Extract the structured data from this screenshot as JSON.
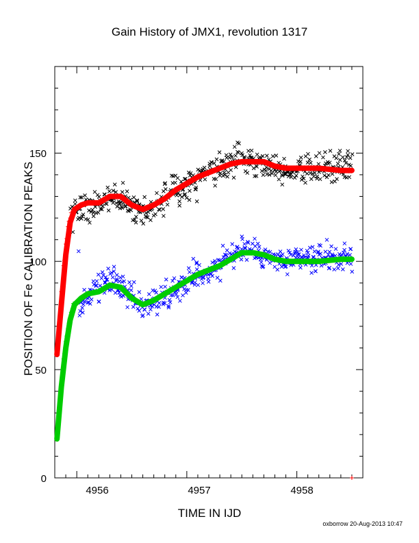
{
  "chart_data": {
    "type": "scatter",
    "title": "Gain History of JMX1, revolution 1317",
    "xlabel": "TIME IN IJD",
    "ylabel": "POSITION OF Fe CALIBRATION PEAKS",
    "xlim": [
      4955.8,
      4958.6
    ],
    "ylim": [
      0,
      190
    ],
    "xticks": [
      "4956",
      "4957",
      "4958"
    ],
    "yticks": [
      "0",
      "50",
      "100",
      "150"
    ],
    "footer": "oxborrow 20-Aug-2013 10:47",
    "series": [
      {
        "color": "#000000",
        "marker": "x",
        "kind": "upper peak raw",
        "anchors": [
          [
            4955.94,
            124
          ],
          [
            4956.0,
            123
          ],
          [
            4956.15,
            126
          ],
          [
            4956.3,
            130
          ],
          [
            4956.45,
            127
          ],
          [
            4956.6,
            123
          ],
          [
            4956.75,
            127
          ],
          [
            4956.9,
            132
          ],
          [
            4957.05,
            137
          ],
          [
            4957.2,
            141
          ],
          [
            4957.35,
            144
          ],
          [
            4957.5,
            148
          ],
          [
            4957.65,
            146
          ],
          [
            4957.8,
            144
          ],
          [
            4957.95,
            142
          ],
          [
            4958.1,
            143
          ],
          [
            4958.3,
            143
          ],
          [
            4958.5,
            144
          ]
        ],
        "spread": 3.5,
        "density": 45
      },
      {
        "color": "#0000ff",
        "marker": "x",
        "kind": "lower peak raw",
        "anchors": [
          [
            4956.02,
            78
          ],
          [
            4956.1,
            83
          ],
          [
            4956.2,
            86
          ],
          [
            4956.32,
            91
          ],
          [
            4956.45,
            86
          ],
          [
            4956.6,
            79
          ],
          [
            4956.75,
            83
          ],
          [
            4956.9,
            88
          ],
          [
            4957.05,
            93
          ],
          [
            4957.2,
            96
          ],
          [
            4957.35,
            100
          ],
          [
            4957.5,
            106
          ],
          [
            4957.65,
            104
          ],
          [
            4957.8,
            100
          ],
          [
            4957.95,
            100
          ],
          [
            4958.1,
            101
          ],
          [
            4958.3,
            102
          ],
          [
            4958.5,
            102
          ]
        ],
        "spread": 3.2,
        "density": 45
      },
      {
        "color": "#ff0000",
        "marker": "line",
        "kind": "upper peak fit",
        "x": [
          4955.82,
          4955.86,
          4955.9,
          4955.94,
          4955.98,
          4956.04,
          4956.1,
          4956.2,
          4956.3,
          4956.4,
          4956.5,
          4956.6,
          4956.7,
          4956.8,
          4956.9,
          4957.0,
          4957.1,
          4957.2,
          4957.3,
          4957.4,
          4957.5,
          4957.6,
          4957.7,
          4957.8,
          4957.9,
          4958.0,
          4958.2,
          4958.4,
          4958.5
        ],
        "y": [
          57,
          80,
          103,
          118,
          124,
          126,
          127,
          127,
          130,
          130,
          126,
          124,
          126,
          129,
          133,
          136,
          139,
          141,
          143,
          145,
          146,
          146,
          146,
          144,
          143,
          143,
          143,
          142,
          142
        ]
      },
      {
        "color": "#00cc00",
        "marker": "line",
        "kind": "lower peak fit",
        "x": [
          4955.82,
          4955.86,
          4955.9,
          4955.94,
          4955.98,
          4956.04,
          4956.1,
          4956.2,
          4956.3,
          4956.4,
          4956.5,
          4956.6,
          4956.7,
          4956.8,
          4956.9,
          4957.0,
          4957.1,
          4957.2,
          4957.3,
          4957.4,
          4957.5,
          4957.6,
          4957.7,
          4957.8,
          4957.9,
          4958.0,
          4958.2,
          4958.4,
          4958.5
        ],
        "y": [
          18,
          42,
          60,
          73,
          80,
          83,
          85,
          86,
          89,
          88,
          83,
          80,
          82,
          85,
          88,
          91,
          94,
          96,
          98,
          101,
          104,
          104,
          103,
          101,
          100,
          100,
          100,
          101,
          101
        ]
      },
      {
        "color": "#ff0000",
        "marker": "+",
        "kind": "upper ramp",
        "x": [
          4955.82,
          4955.84,
          4955.86,
          4955.88,
          4955.9,
          4955.92,
          4955.94
        ],
        "y": [
          57,
          72,
          86,
          98,
          108,
          116,
          120
        ]
      },
      {
        "color": "#00cc00",
        "marker": "+",
        "kind": "lower ramp",
        "x": [
          4955.82,
          4955.84,
          4955.86,
          4955.88,
          4955.9,
          4955.92,
          4955.94,
          4955.96
        ],
        "y": [
          18,
          32,
          44,
          55,
          63,
          69,
          74,
          78
        ]
      }
    ]
  }
}
